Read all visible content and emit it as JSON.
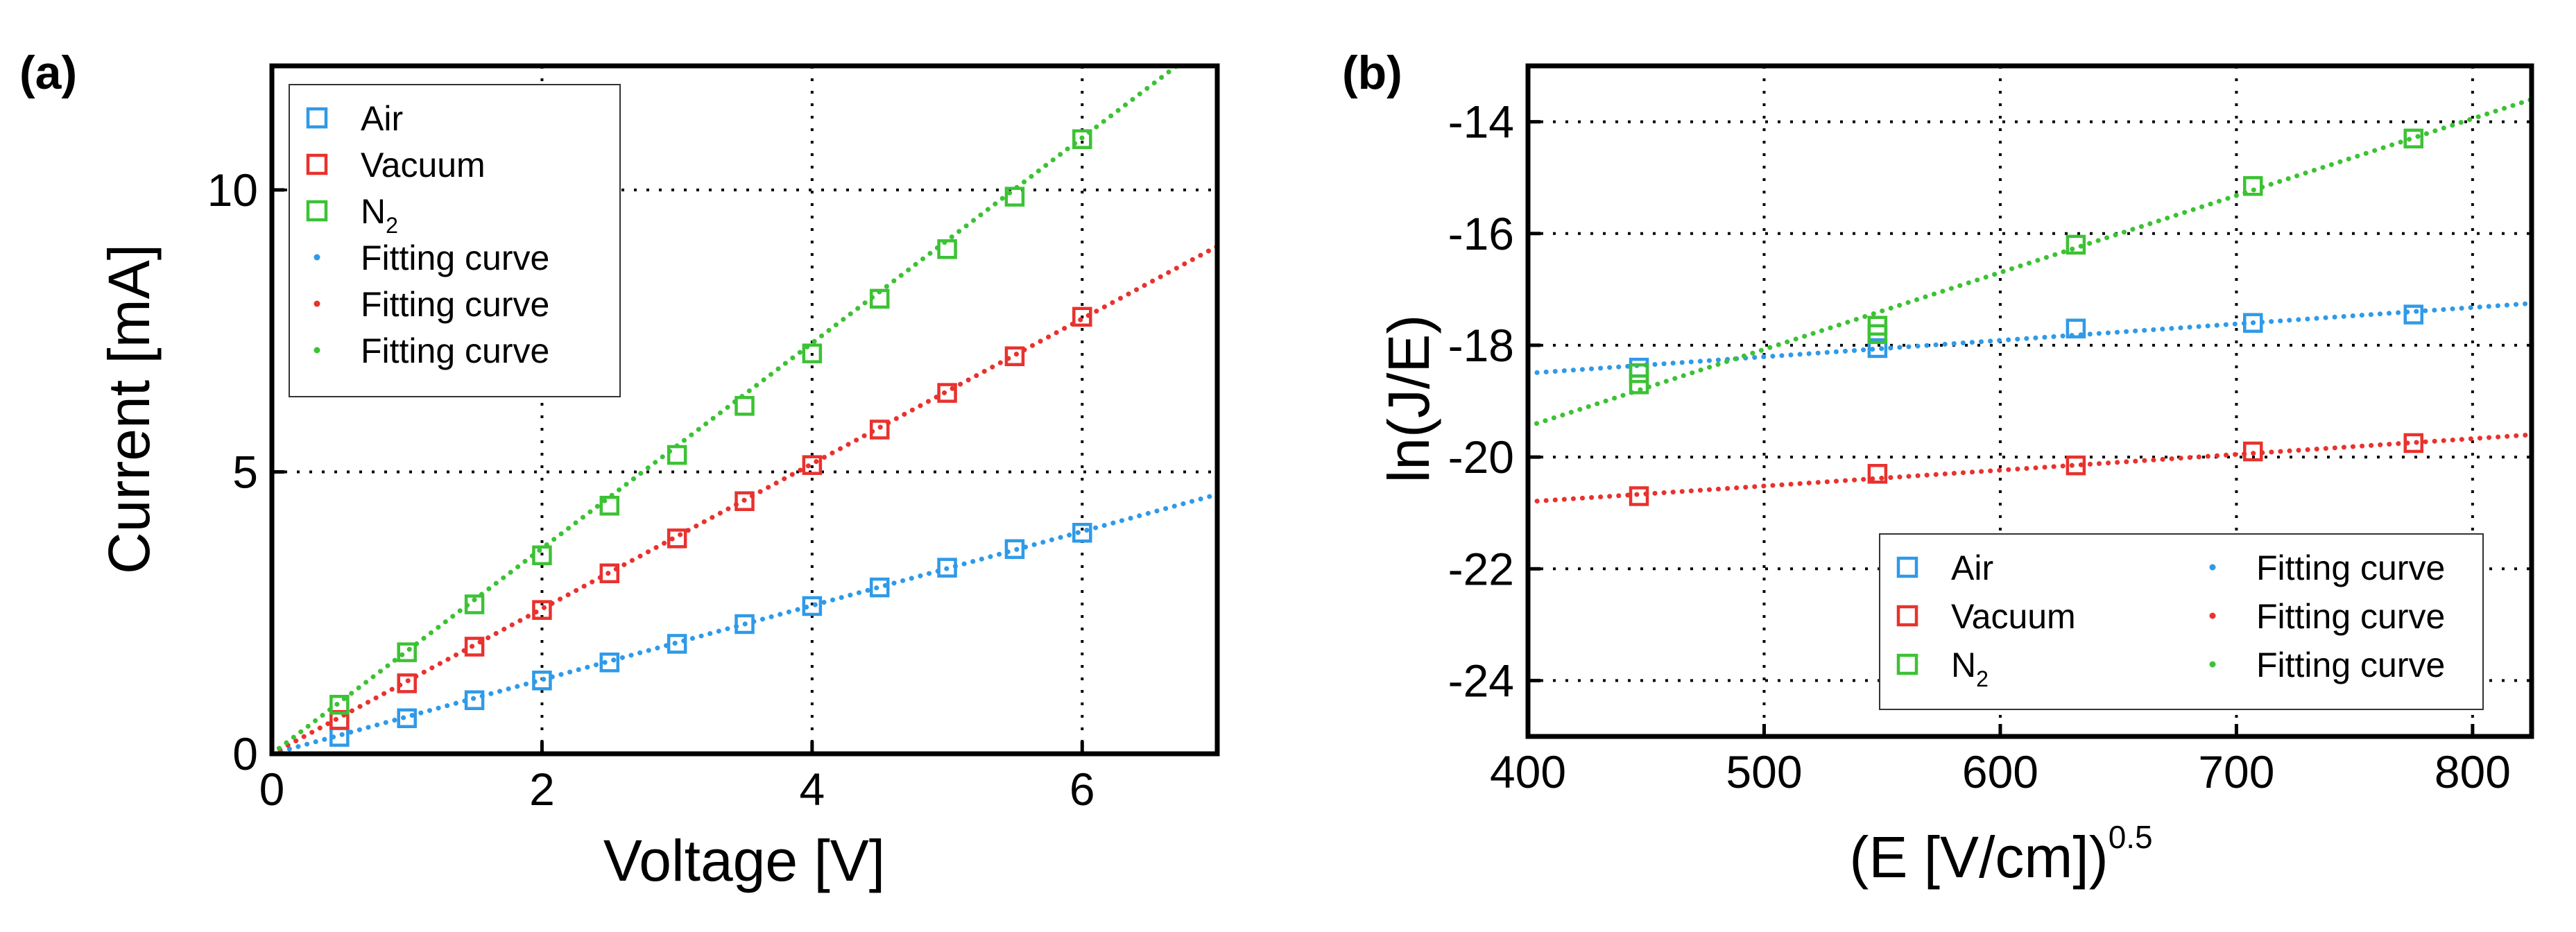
{
  "colors": {
    "Air": "#2f9ae8",
    "Vacuum": "#e8322e",
    "N2": "#3cc234"
  },
  "chart_data": [
    {
      "id": "a",
      "panel_label": "(a)",
      "type": "scatter",
      "xlabel": "Voltage [V]",
      "ylabel": "Current [mA]",
      "xlim": [
        0,
        7
      ],
      "ylim": [
        0,
        12.2
      ],
      "xticks": [
        0,
        2,
        4,
        6
      ],
      "yticks": [
        0,
        5,
        10
      ],
      "grid": true,
      "legend_position": "top-left",
      "legend": [
        {
          "label": "Air",
          "sub": "",
          "kind": "marker",
          "color_key": "Air"
        },
        {
          "label": "Vacuum",
          "sub": "",
          "kind": "marker",
          "color_key": "Vacuum"
        },
        {
          "label": "N",
          "sub": "2",
          "kind": "marker",
          "color_key": "N2"
        },
        {
          "label": "Fitting curve",
          "sub": "",
          "kind": "line",
          "color_key": "Air"
        },
        {
          "label": "Fitting curve",
          "sub": "",
          "kind": "line",
          "color_key": "Vacuum"
        },
        {
          "label": "Fitting curve",
          "sub": "",
          "kind": "line",
          "color_key": "N2"
        }
      ],
      "series": [
        {
          "color_key": "Air",
          "x": [
            0.5,
            1,
            1.5,
            2,
            2.5,
            3,
            3.5,
            4,
            4.5,
            5,
            5.5,
            6
          ],
          "y": [
            0.3,
            0.63,
            0.95,
            1.3,
            1.62,
            1.95,
            2.3,
            2.62,
            2.95,
            3.3,
            3.63,
            3.92
          ],
          "fit": {
            "x": [
              0,
              7
            ],
            "y": [
              0,
              4.6
            ]
          }
        },
        {
          "color_key": "Vacuum",
          "x": [
            0.5,
            1,
            1.5,
            2,
            2.5,
            3,
            3.5,
            4,
            4.5,
            5,
            5.5,
            6
          ],
          "y": [
            0.6,
            1.25,
            1.9,
            2.55,
            3.2,
            3.82,
            4.48,
            5.12,
            5.75,
            6.4,
            7.05,
            7.75
          ],
          "fit": {
            "x": [
              0,
              7
            ],
            "y": [
              0,
              9.0
            ]
          }
        },
        {
          "color_key": "N2",
          "x": [
            0.5,
            1,
            1.5,
            2,
            2.5,
            3,
            3.5,
            4,
            4.5,
            5,
            5.5,
            6
          ],
          "y": [
            0.87,
            1.8,
            2.65,
            3.52,
            4.4,
            5.3,
            6.17,
            7.1,
            8.07,
            8.95,
            9.88,
            10.9
          ],
          "fit": {
            "x": [
              0,
              6.7
            ],
            "y": [
              0,
              12.2
            ]
          }
        }
      ]
    },
    {
      "id": "b",
      "panel_label": "(b)",
      "type": "scatter",
      "xlabel": "(E [V/cm])",
      "xlabel_sup": "0.5",
      "ylabel": "ln(J/E)",
      "xlim": [
        400,
        825
      ],
      "ylim": [
        -25,
        -13
      ],
      "xticks": [
        400,
        500,
        600,
        700,
        800
      ],
      "yticks": [
        -14,
        -16,
        -18,
        -20,
        -22,
        -24
      ],
      "grid": true,
      "legend_position": "bottom-right",
      "legend": [
        {
          "label": "Air",
          "sub": "",
          "kind": "marker",
          "color_key": "Air"
        },
        {
          "label": "Vacuum",
          "sub": "",
          "kind": "marker",
          "color_key": "Vacuum"
        },
        {
          "label": "N",
          "sub": "2",
          "kind": "marker",
          "color_key": "N2"
        },
        {
          "label": "Fitting curve",
          "sub": "",
          "kind": "line",
          "color_key": "Air"
        },
        {
          "label": "Fitting curve",
          "sub": "",
          "kind": "line",
          "color_key": "Vacuum"
        },
        {
          "label": "Fitting curve",
          "sub": "",
          "kind": "line",
          "color_key": "N2"
        }
      ],
      "series": [
        {
          "color_key": "Air",
          "x": [
            447,
            548,
            632,
            707,
            775
          ],
          "y": [
            -18.4,
            -18.05,
            -17.7,
            -17.6,
            -17.45
          ],
          "fit": {
            "x": [
              400,
              825
            ],
            "y": [
              -18.5,
              -17.25
            ]
          }
        },
        {
          "color_key": "Vacuum",
          "x": [
            447,
            548,
            632,
            707,
            775
          ],
          "y": [
            -20.7,
            -20.3,
            -20.15,
            -19.9,
            -19.75
          ],
          "fit": {
            "x": [
              400,
              825
            ],
            "y": [
              -20.8,
              -19.6
            ]
          }
        },
        {
          "color_key": "N2",
          "x": [
            447,
            447,
            548,
            548,
            632,
            707,
            775
          ],
          "y": [
            -18.5,
            -18.7,
            -17.65,
            -17.8,
            -16.2,
            -15.15,
            -14.3
          ],
          "fit": {
            "x": [
              400,
              825
            ],
            "y": [
              -19.45,
              -13.6
            ]
          }
        }
      ]
    }
  ]
}
